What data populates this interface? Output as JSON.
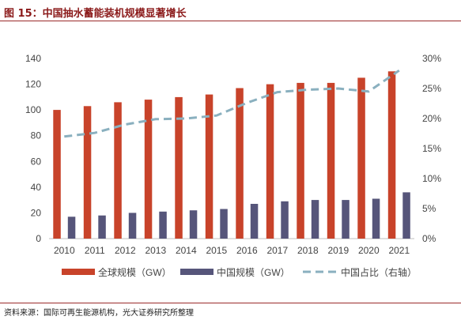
{
  "figure_title": "图 15：中国抽水蓄能装机规模显著增长",
  "source_note": "资料来源：国际可再生能源机构，光大证券研究所整理",
  "chart_data": {
    "type": "bar",
    "categories": [
      "2010",
      "2011",
      "2012",
      "2013",
      "2014",
      "2015",
      "2016",
      "2017",
      "2018",
      "2019",
      "2020",
      "2021"
    ],
    "series": [
      {
        "name": "全球规模（GW）",
        "kind": "bar",
        "axis": "left",
        "color": "#c8432a",
        "values": [
          100,
          103,
          106,
          108,
          110,
          112,
          117,
          120,
          121,
          121,
          125,
          130
        ]
      },
      {
        "name": "中国规模（GW）",
        "kind": "bar",
        "axis": "left",
        "color": "#56557a",
        "values": [
          17,
          18,
          20,
          21,
          22,
          23,
          27,
          29,
          30,
          30,
          31,
          36
        ]
      },
      {
        "name": "中国占比（右轴）",
        "kind": "line",
        "axis": "right",
        "color": "#8ab0bf",
        "dashed": true,
        "values": [
          17.0,
          17.6,
          19.0,
          19.9,
          20.0,
          20.5,
          22.6,
          24.4,
          24.8,
          25.0,
          24.5,
          28.0
        ]
      }
    ],
    "ylim_left": [
      0,
      140
    ],
    "yticks_left": [
      "0",
      "20",
      "40",
      "60",
      "80",
      "100",
      "120",
      "140"
    ],
    "ylim_right": [
      0,
      30
    ],
    "yticks_right": [
      "0%",
      "5%",
      "10%",
      "15%",
      "20%",
      "25%",
      "30%"
    ],
    "grid": false,
    "legend_position": "bottom"
  }
}
